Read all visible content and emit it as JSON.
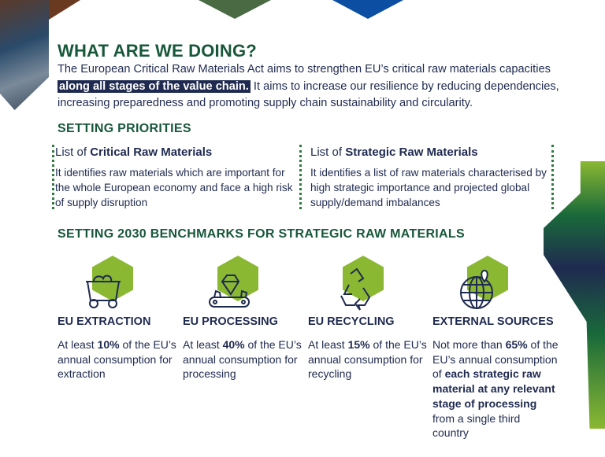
{
  "heading": "WHAT ARE WE DOING?",
  "intro": {
    "before": "The European Critical Raw Materials Act aims to strengthen EU’s critical raw materials capacities ",
    "highlight": "along all stages of the value chain.",
    "after": " It aims to increase our resilience by reducing dependencies, increasing preparedness and promoting supply chain sustainability and circularity."
  },
  "priorities": {
    "title": "SETTING PRIORITIES",
    "items": [
      {
        "prefix": "List of ",
        "bold": "Critical Raw Materials",
        "text": "It identifies raw materials which are important for the whole European economy and face a high risk of supply disruption"
      },
      {
        "prefix": "List of ",
        "bold": "Strategic Raw Materials",
        "text": "It identifies a list of raw materials characterised by high strategic importance and projected global supply/demand imbalances"
      }
    ]
  },
  "benchmarks": {
    "title": "SETTING 2030 BENCHMARKS FOR STRATEGIC RAW MATERIALS",
    "items": [
      {
        "icon": "mine-cart-icon",
        "title": "EU EXTRACTION",
        "a": "At least ",
        "b": "10%",
        "c": " of the EU’s annual consumption for extraction",
        "d": "",
        "e": ""
      },
      {
        "icon": "conveyor-gem-icon",
        "title": "EU PROCESSING",
        "a": "At least ",
        "b": "40%",
        "c": " of the EU’s annual consumption for processing",
        "d": "",
        "e": ""
      },
      {
        "icon": "recycle-icon",
        "title": "EU RECYCLING",
        "a": "At least ",
        "b": "15%",
        "c": " of the EU’s annual consumption for recycling",
        "d": "",
        "e": ""
      },
      {
        "icon": "globe-pin-icon",
        "title": "EXTERNAL SOURCES",
        "a": "Not more than ",
        "b": "65%",
        "c": " of the EU’s annual consumption of ",
        "d": "each strategic raw material at any relevant stage of processing",
        "e": " from a single third country"
      }
    ]
  },
  "colors": {
    "heading": "#17573a",
    "text": "#1f2a50",
    "hex": "#8ab832",
    "blue": "#0b4ea2"
  }
}
